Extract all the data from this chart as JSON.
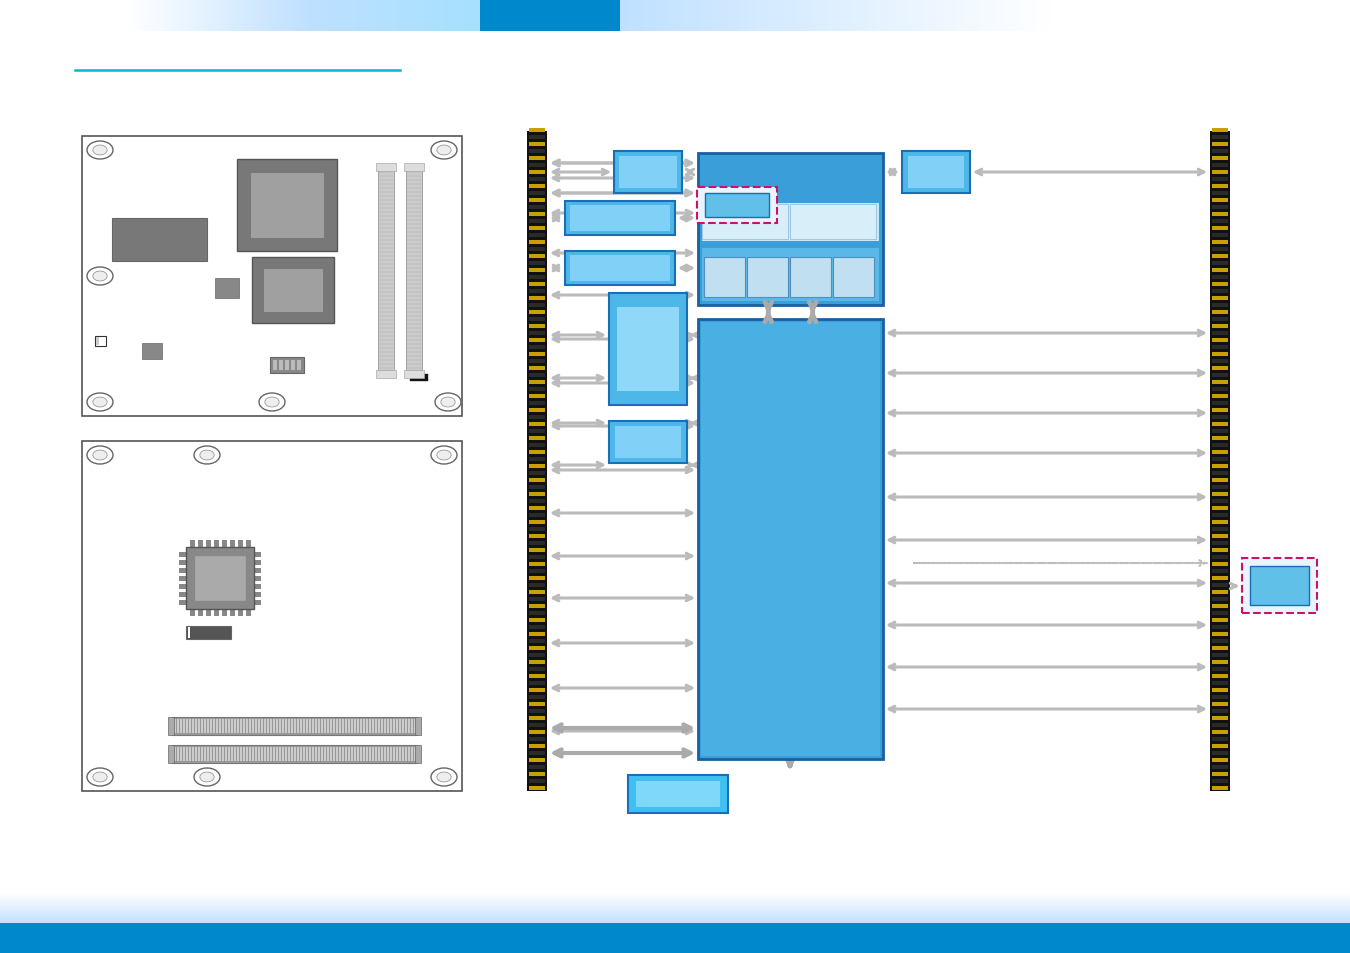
{
  "bg_color": "#ffffff",
  "cyan_line": "#00b8d8",
  "header_dark_blue": "#0088cc",
  "footer_blue": "#0088cc",
  "board_edge": "#444444",
  "chip_gray": "#787878",
  "chip_light": "#a0a0a0",
  "edge_bar_dark": "#1a1a1a",
  "edge_bar_yellow": "#c8a000",
  "block_blue_main": "#3a9fd8",
  "block_blue_top": "#1a6eb5",
  "block_blue_med": "#4db8e8",
  "block_blue_light": "#80d0f0",
  "block_blue_inner": "#b0e0f8",
  "block_white_inner": "#d0eaf8",
  "arrow_gray": "#999999",
  "arrow_dark": "#777777",
  "dashed_pink": "#cc1166",
  "bottom_block_blue": "#40c0f0"
}
